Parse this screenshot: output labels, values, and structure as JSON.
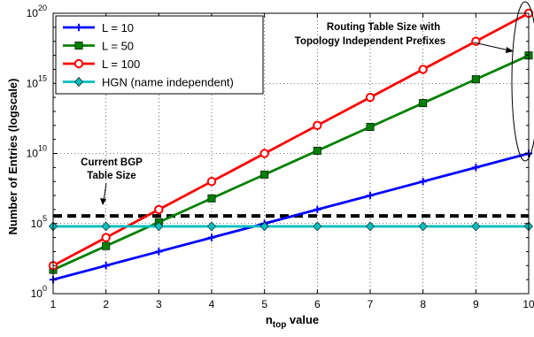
{
  "chart_data": {
    "type": "line",
    "x": [
      1,
      2,
      3,
      4,
      5,
      6,
      7,
      8,
      9,
      10
    ],
    "xlabel_main": "n",
    "xlabel_sub": "top",
    "xlabel_rest": " value",
    "ylabel": "Number of Entries (logscale)",
    "xlim": [
      1,
      10
    ],
    "ylim": [
      1,
      1e+20
    ],
    "yscale": "log",
    "grid": true,
    "legend_position": "top-left",
    "x_ticks": [
      "1",
      "2",
      "3",
      "4",
      "5",
      "6",
      "7",
      "8",
      "9",
      "10"
    ],
    "y_ticks": [
      {
        "base": "10",
        "exp": "0",
        "value": 1
      },
      {
        "base": "10",
        "exp": "5",
        "value": 100000
      },
      {
        "base": "10",
        "exp": "10",
        "value": 10000000000
      },
      {
        "base": "10",
        "exp": "15",
        "value": 1000000000000000.0
      },
      {
        "base": "10",
        "exp": "20",
        "value": 1e+20
      }
    ],
    "series": [
      {
        "name": "L = 10",
        "color": "#0000ff",
        "marker": "plus",
        "values": [
          10,
          100,
          1000,
          10000,
          100000,
          1000000,
          10000000,
          100000000,
          1000000000,
          10000000000
        ]
      },
      {
        "name": "L = 50",
        "color": "#008000",
        "marker": "square",
        "values": [
          50,
          2500,
          125000,
          6250000,
          312500000,
          15625000000,
          781250000000,
          39062500000000,
          1953125000000000,
          97656250000000000
        ]
      },
      {
        "name": "L = 100",
        "color": "#ff0000",
        "marker": "circle",
        "values": [
          100,
          10000,
          1000000,
          100000000,
          10000000000,
          1000000000000,
          100000000000000,
          1e+16,
          1e+18,
          1e+20
        ]
      },
      {
        "name": "HGN (name independent)",
        "color": "#00bfbf",
        "marker": "diamond",
        "values": [
          63000,
          63000,
          63000,
          63000,
          63000,
          63000,
          63000,
          63000,
          63000,
          63000
        ]
      }
    ],
    "reference_lines": [
      {
        "label_line1": "Current BGP",
        "label_line2": "Table Size",
        "value": 350000,
        "style": "dashed",
        "color": "#000000"
      }
    ],
    "annotations": [
      {
        "line1": "Routing Table Size with",
        "line2": "Topology Independent Prefixes"
      }
    ]
  }
}
